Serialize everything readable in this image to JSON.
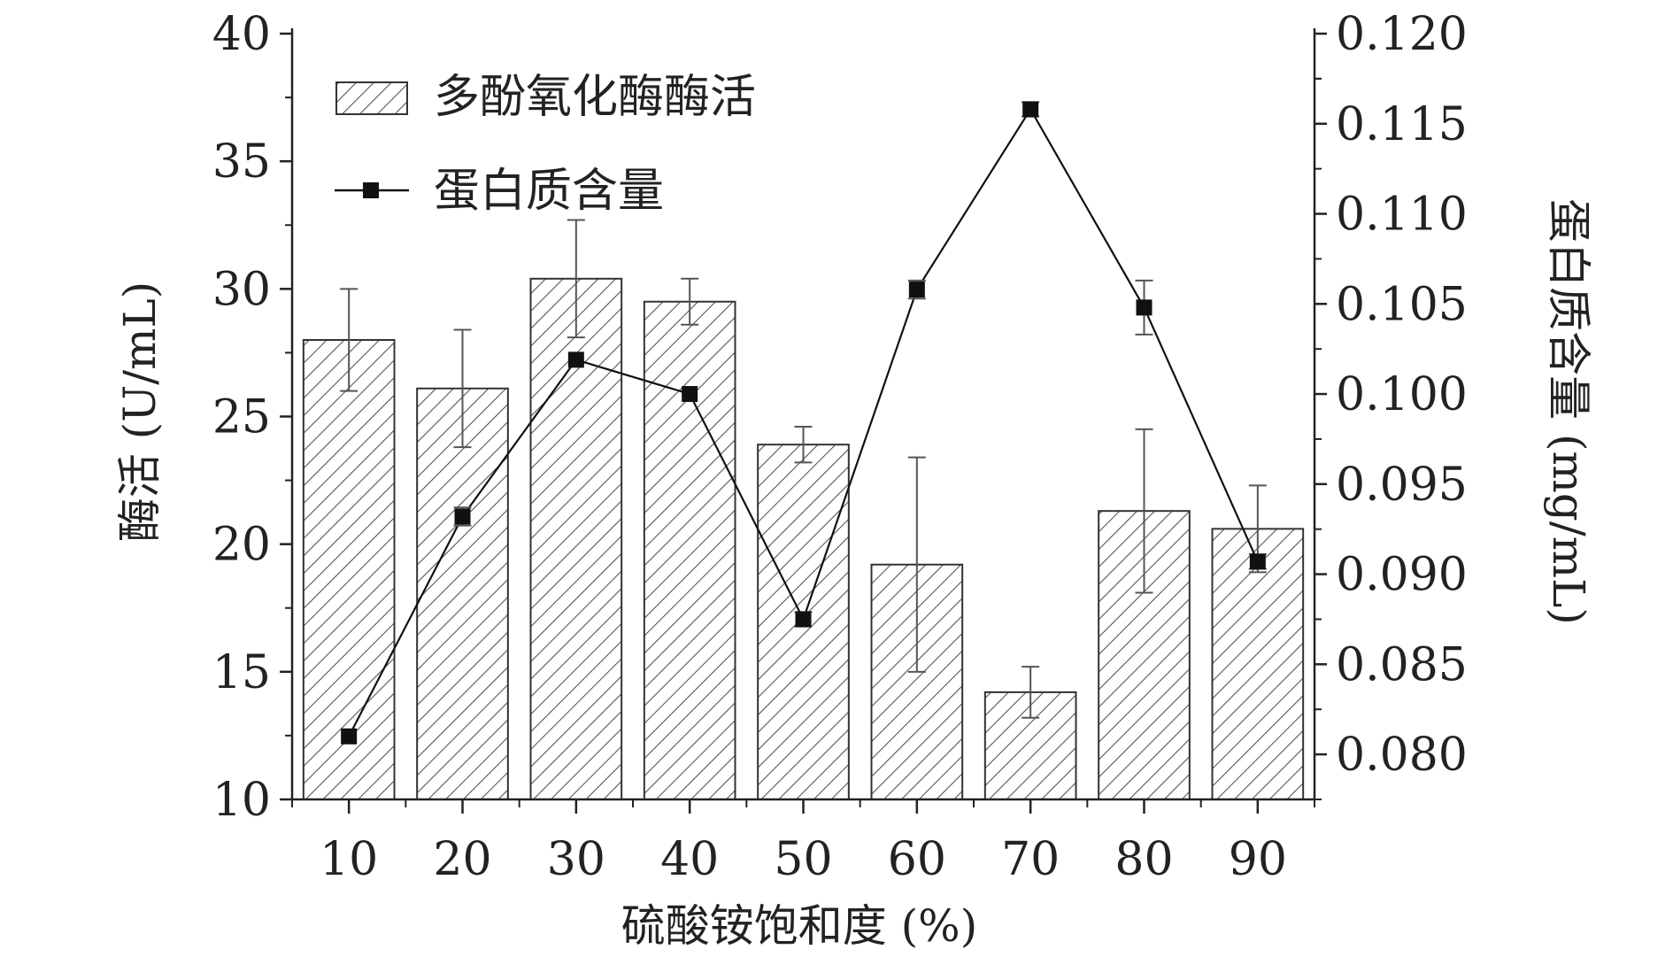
{
  "chart_data": {
    "type": "bar",
    "title": "",
    "xlabel": "硫酸铵饱和度 (%)",
    "ylabel_left": "酶活 (U/mL)",
    "ylabel_right": "蛋白质含量 (mg/mL)",
    "categories": [
      "10",
      "20",
      "30",
      "40",
      "50",
      "60",
      "70",
      "80",
      "90"
    ],
    "ylim_left": [
      10,
      40
    ],
    "yticks_left": [
      "10",
      "15",
      "20",
      "25",
      "30",
      "35",
      "40"
    ],
    "ylim_right": [
      0.0775,
      0.12
    ],
    "yticks_right": [
      "0.080",
      "0.085",
      "0.090",
      "0.095",
      "0.100",
      "0.105",
      "0.110",
      "0.115",
      "0.120"
    ],
    "legend_position": "top-left",
    "grid": false,
    "series": [
      {
        "name": "多酚氧化酶酶活",
        "type": "bar",
        "axis": "left",
        "pattern": "diagonal-hatch",
        "values": [
          28.0,
          26.1,
          30.4,
          29.5,
          23.9,
          19.2,
          14.2,
          21.3,
          20.6
        ],
        "errors": [
          2.0,
          2.3,
          2.3,
          0.9,
          0.7,
          4.2,
          1.0,
          3.2,
          1.7
        ]
      },
      {
        "name": "蛋白质含量",
        "type": "line",
        "axis": "right",
        "marker": "square",
        "color": "#111111",
        "values": [
          0.081,
          0.0932,
          0.1019,
          0.1,
          0.0875,
          0.1058,
          0.1158,
          0.1048,
          0.0907
        ],
        "errors": [
          0.0,
          0.0005,
          0.0,
          0.0,
          0.0004,
          0.0005,
          0.0004,
          0.0015,
          0.0004
        ]
      }
    ]
  }
}
